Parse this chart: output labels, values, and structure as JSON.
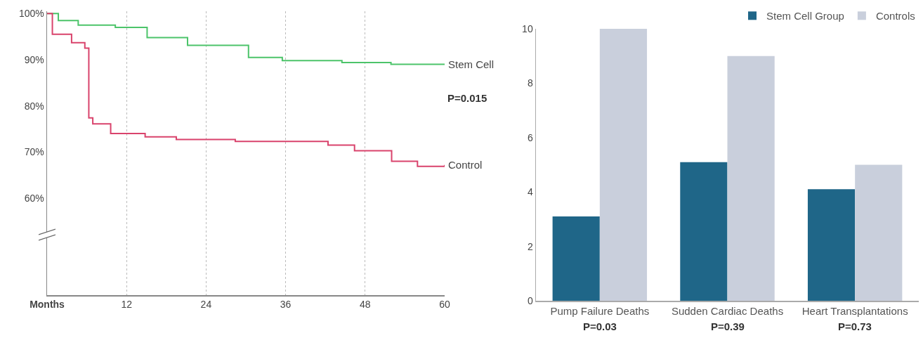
{
  "chart_data": [
    {
      "type": "step",
      "xlim": [
        0,
        60
      ],
      "ylim": [
        39,
        100.5
      ],
      "xticks": [
        {
          "value": 0,
          "label": "Months"
        },
        12,
        24,
        36,
        48,
        60
      ],
      "yticks": [
        {
          "value": 60,
          "label": "60%"
        },
        {
          "value": 70,
          "label": "70%"
        },
        {
          "value": 80,
          "label": "80%"
        },
        {
          "value": 90,
          "label": "90%"
        },
        {
          "value": 100,
          "label": "100%"
        }
      ],
      "grid": "x",
      "legend": false,
      "series": [
        {
          "name": "Stem Cell",
          "color": "#4cc46a",
          "x": [
            0,
            1.7,
            4.7,
            10.3,
            15.1,
            21.2,
            30.4,
            35.5,
            44.5,
            51.9,
            60
          ],
          "values": [
            100,
            98.5,
            97.5,
            97,
            94.8,
            93.1,
            90.5,
            89.8,
            89.4,
            89,
            89
          ]
        },
        {
          "name": "Control",
          "color": "#d9436c",
          "x": [
            0,
            0.8,
            3.7,
            5.7,
            6.3,
            6.9,
            9.6,
            14.8,
            19.5,
            28.4,
            42.4,
            46.4,
            52,
            55.9,
            60
          ],
          "values": [
            100,
            95.5,
            93.7,
            92.5,
            77.4,
            76.1,
            74,
            73.3,
            72.7,
            72.3,
            71.5,
            70.3,
            68,
            66.9,
            67.2
          ]
        }
      ],
      "annotations": [
        "P=0.015"
      ]
    },
    {
      "type": "bar",
      "categories": [
        "Pump Failure Deaths",
        "Sudden Cardiac Deaths",
        "Heart Transplantations"
      ],
      "ylim": [
        0,
        10
      ],
      "yticks": [
        0,
        2,
        4,
        6,
        8,
        10
      ],
      "grid": false,
      "legend": "top right",
      "series": [
        {
          "name": "Stem Cell Group",
          "color": "#1f6688",
          "values": [
            3.1,
            5.1,
            4.1
          ]
        },
        {
          "name": "Controls",
          "color": "#c9cfdc",
          "values": [
            10,
            9,
            5
          ]
        }
      ],
      "annotations": [
        "P=0.03",
        "P=0.39",
        "P=0.73"
      ]
    }
  ]
}
